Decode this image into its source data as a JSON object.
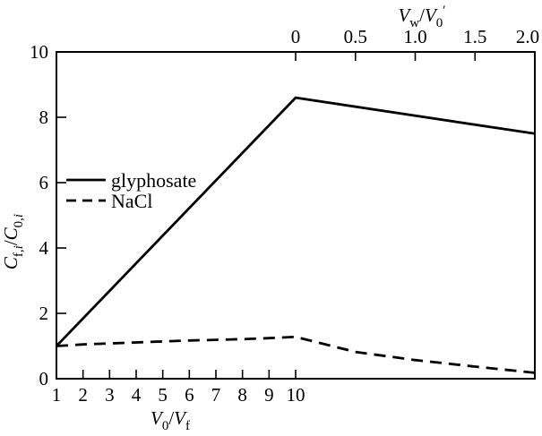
{
  "figure": {
    "background": "#ffffff",
    "line_color": "#000000"
  },
  "chart_data": {
    "type": "line",
    "title": "",
    "axes": {
      "bottom": {
        "label_text": "V0/Vf",
        "label_parts": [
          {
            "t": "V",
            "i": true
          },
          {
            "t": "0",
            "sub": true
          },
          {
            "t": "/"
          },
          {
            "t": "V",
            "i": true
          },
          {
            "t": "f",
            "sub": true
          }
        ],
        "range": [
          1,
          10
        ],
        "ticks": [
          1,
          2,
          3,
          4,
          5,
          6,
          7,
          8,
          9,
          10
        ],
        "tick_labels": [
          "1",
          "2",
          "3",
          "4",
          "5",
          "6",
          "7",
          "8",
          "9",
          "10"
        ]
      },
      "top": {
        "label_text": "Vw/V0′",
        "label_parts": [
          {
            "t": "V",
            "i": true
          },
          {
            "t": "w",
            "sub": true
          },
          {
            "t": "/"
          },
          {
            "t": "V",
            "i": true
          },
          {
            "t": "0",
            "sub": true
          },
          {
            "t": "′",
            "sup": true
          }
        ],
        "range": [
          0,
          2
        ],
        "ticks": [
          0,
          0.5,
          1.0,
          1.5,
          2.0
        ],
        "tick_labels": [
          "0",
          "0.5",
          "1.0",
          "1.5",
          "2.0"
        ]
      },
      "left": {
        "label_text": "Cf,i/C0,i",
        "label_parts": [
          {
            "t": "C",
            "i": true
          },
          {
            "t": "f,",
            "sub": true
          },
          {
            "t": "i",
            "sub": true,
            "i": true
          },
          {
            "t": "/"
          },
          {
            "t": "C",
            "i": true
          },
          {
            "t": "0,",
            "sub": true
          },
          {
            "t": "i",
            "sub": true,
            "i": true
          }
        ],
        "range": [
          0,
          10
        ],
        "ticks": [
          0,
          2,
          4,
          6,
          8,
          10
        ],
        "tick_labels": [
          "0",
          "2",
          "4",
          "6",
          "8",
          "10"
        ]
      }
    },
    "layout_hints": {
      "grid": false,
      "legend_position": "center-left",
      "dual_x_axes": "bottom axis (V0/Vf 1-10) maps to left portion of plot; top axis (Vw/V0' 0-2.0) maps to right portion; both series peak at the shared boundary (V0/Vf = 10, Vw/V0' = 0)"
    },
    "series": [
      {
        "name": "glyphosate",
        "line": "solid",
        "color": "#000000",
        "points_bottom_axis": [
          [
            1,
            1.0
          ],
          [
            10,
            8.6
          ]
        ],
        "points_top_axis": [
          [
            0,
            8.6
          ],
          [
            2.0,
            7.5
          ]
        ]
      },
      {
        "name": "NaCl",
        "line": "dashed",
        "color": "#000000",
        "points_bottom_axis": [
          [
            1,
            1.0
          ],
          [
            2,
            1.05
          ],
          [
            3,
            1.08
          ],
          [
            4,
            1.11
          ],
          [
            5,
            1.14
          ],
          [
            6,
            1.17
          ],
          [
            7,
            1.19
          ],
          [
            8,
            1.21
          ],
          [
            9,
            1.24
          ],
          [
            10,
            1.28
          ]
        ],
        "points_top_axis": [
          [
            0,
            1.28
          ],
          [
            0.5,
            0.82
          ],
          [
            1.0,
            0.57
          ],
          [
            1.5,
            0.37
          ],
          [
            2.0,
            0.18
          ]
        ]
      }
    ],
    "legend": {
      "items": [
        {
          "label": "glyphosate",
          "line": "solid"
        },
        {
          "label": "NaCl",
          "line": "dashed"
        }
      ]
    }
  }
}
